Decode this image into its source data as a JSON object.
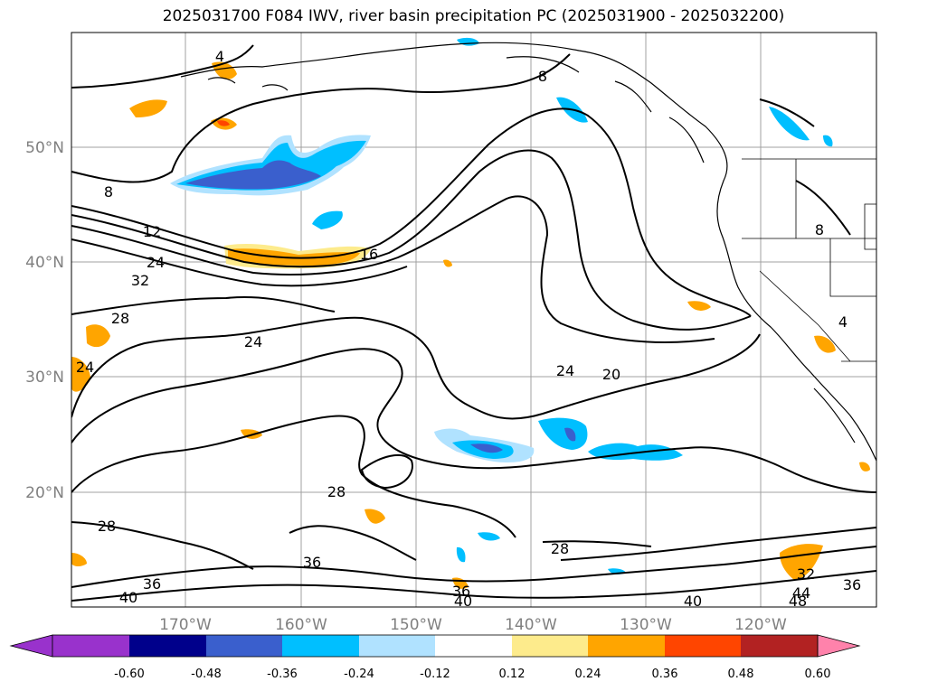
{
  "title": "2025031700 F084 IWV, river basin precipitation PC (2025031900 - 2025032200)",
  "map": {
    "lat_labels": [
      "50°N",
      "40°N",
      "30°N",
      "20°N"
    ],
    "lon_labels": [
      "170°W",
      "160°W",
      "150°W",
      "140°W",
      "130°W",
      "120°W"
    ],
    "contour_labels": [
      "4",
      "8",
      "8",
      "8",
      "12",
      "16",
      "24",
      "32",
      "28",
      "24",
      "24",
      "20",
      "24",
      "28",
      "28",
      "28",
      "36",
      "36",
      "40",
      "36",
      "40",
      "40",
      "32",
      "36",
      "44",
      "48",
      "4"
    ]
  },
  "colorbar": {
    "labels": [
      "-0.60",
      "-0.48",
      "-0.36",
      "-0.24",
      "-0.12",
      "0.12",
      "0.24",
      "0.36",
      "0.48",
      "0.60"
    ],
    "colors": [
      "#9932cc",
      "#00008b",
      "#3a5fcd",
      "#00bfff",
      "#b0e2ff",
      "#ffffff",
      "#fdeb8c",
      "#ffa500",
      "#ff4500",
      "#b22222",
      "#ff82ab"
    ]
  }
}
